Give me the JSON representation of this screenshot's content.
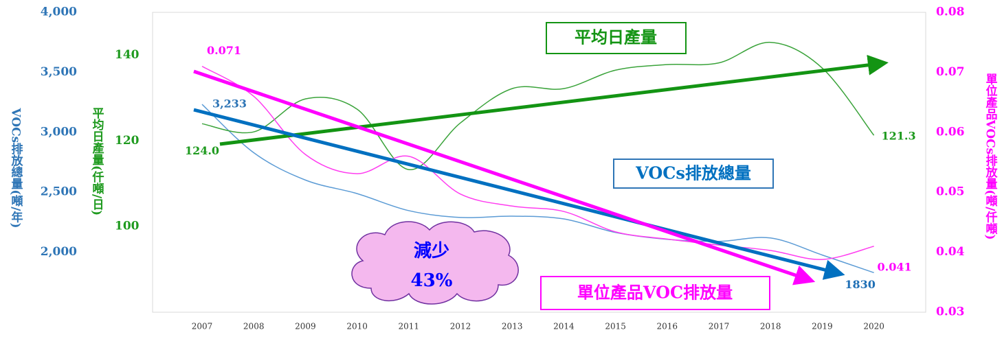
{
  "chart_data": {
    "type": "line",
    "x": [
      "2007",
      "2008",
      "2009",
      "2010",
      "2011",
      "2012",
      "2013",
      "2014",
      "2015",
      "2016",
      "2017",
      "2018",
      "2019",
      "2020"
    ],
    "ylabel": "VOCs排放總量(噸/年)",
    "y2label": "平均日產量(仟噸/日)",
    "y3label": "單位產品VOCs排放量(噸/仟噸)",
    "ylim": [
      1500,
      4000
    ],
    "yticks": [
      {
        "value": 2000,
        "label": "2,000"
      },
      {
        "value": 2500,
        "label": "2,500"
      },
      {
        "value": 3000,
        "label": "3,000"
      },
      {
        "value": 3500,
        "label": "3,500"
      },
      {
        "value": 4000,
        "label": "4,000"
      }
    ],
    "y2lim": [
      80,
      150
    ],
    "y2ticks": [
      100,
      120,
      140
    ],
    "y3lim": [
      0.03,
      0.08
    ],
    "y3ticks": [
      0.03,
      0.04,
      0.05,
      0.06,
      0.07,
      0.08
    ],
    "series": [
      {
        "name": "VOCs排放總量",
        "color": "#5b9bd5",
        "axis": "y",
        "values": [
          3233,
          2830,
          2602,
          2489,
          2347,
          2290,
          2301,
          2278,
          2165,
          2108,
          2091,
          2119,
          1977,
          1830
        ],
        "value_labels": [
          "3,233",
          null,
          null,
          null,
          null,
          null,
          null,
          null,
          null,
          null,
          null,
          null,
          null,
          "1830"
        ]
      },
      {
        "name": "平均日產量",
        "color": "#3aa33a",
        "axis": "y2",
        "values": [
          124.0,
          122.1,
          129.8,
          127.4,
          113.3,
          124.2,
          132.2,
          132.2,
          136.5,
          137.8,
          138.2,
          143.0,
          137.0,
          121.3
        ],
        "value_labels": [
          "124.0",
          null,
          null,
          null,
          null,
          null,
          null,
          null,
          null,
          null,
          null,
          null,
          null,
          "121.3"
        ]
      },
      {
        "name": "單位產品VOC排放量",
        "color": "#ff3cf0",
        "axis": "y3",
        "values": [
          0.071,
          0.066,
          0.0563,
          0.0531,
          0.056,
          0.0497,
          0.0477,
          0.0468,
          0.0434,
          0.0422,
          0.0412,
          0.0403,
          0.0388,
          0.041
        ],
        "value_labels": [
          "0.071",
          null,
          null,
          null,
          null,
          null,
          null,
          null,
          null,
          null,
          null,
          null,
          null,
          "0.041"
        ]
      }
    ],
    "annotations": [
      "減少",
      "43%"
    ]
  }
}
